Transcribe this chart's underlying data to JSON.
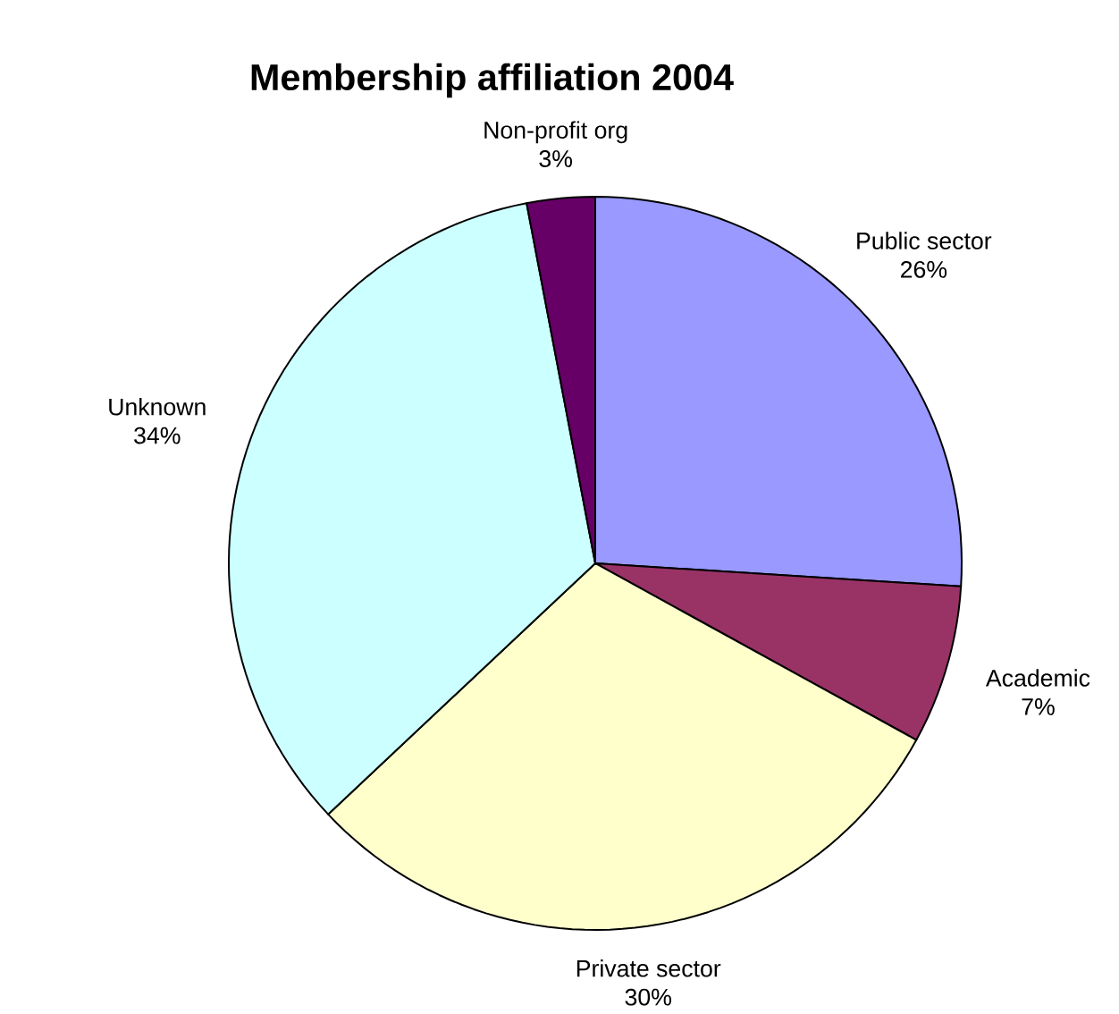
{
  "chart_data": {
    "type": "pie",
    "title": "Membership affiliation 2004",
    "categories": [
      "Public sector",
      "Academic",
      "Private sector",
      "Unknown",
      "Non-profit org"
    ],
    "values": [
      26,
      7,
      30,
      34,
      3
    ],
    "value_labels": [
      "26%",
      "7%",
      "30%",
      "34%",
      "3%"
    ],
    "colors": [
      "#9999ff",
      "#993366",
      "#ffffcc",
      "#ccffff",
      "#660066"
    ]
  }
}
